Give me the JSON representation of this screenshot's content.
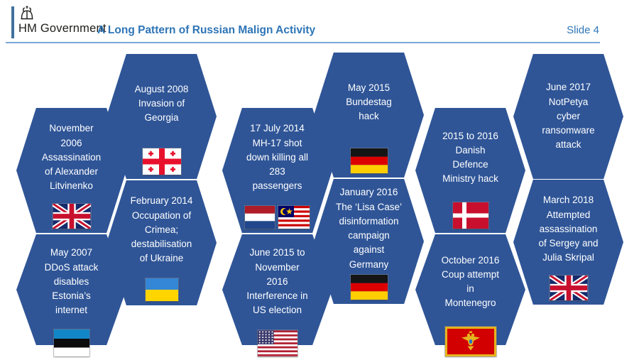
{
  "slide": {
    "org": "HM Government",
    "title": "A Long Pattern of Russian Malign Activity",
    "slide_number": "Slide 4"
  },
  "colors": {
    "hexagon_fill": "#2F5597",
    "title_blue": "#2E75B6",
    "rule_blue": "#7BA7D7",
    "logo_bar_blue": "#41719C"
  },
  "icons": {
    "logo": "crown-icon"
  },
  "hexagons": [
    {
      "name": "litvinenko-assassination",
      "text": "November\n2006\nAssassination\nof Alexander\nLitvinenko",
      "flags": [
        "uk-flag"
      ]
    },
    {
      "name": "estonia-ddos",
      "text": "May 2007\nDDoS attack\ndisables\nEstonia’s\ninternet",
      "flags": [
        "estonia-flag"
      ]
    },
    {
      "name": "georgia-invasion",
      "text": "August 2008\nInvasion of\nGeorgia",
      "flags": [
        "georgia-flag"
      ]
    },
    {
      "name": "crimea-occupation",
      "text": "February 2014\nOccupation of\nCrimea;\ndestabilisation\nof Ukraine",
      "flags": [
        "ukraine-flag"
      ]
    },
    {
      "name": "mh17-shootdown",
      "text": "17 July 2014\nMH-17 shot\ndown killing all\n283\npassengers",
      "flags": [
        "netherlands-flag",
        "malaysia-flag"
      ]
    },
    {
      "name": "us-election-interference",
      "text": "June 2015 to\nNovember\n2016\nInterference in\nUS election",
      "flags": [
        "usa-flag"
      ]
    },
    {
      "name": "bundestag-hack",
      "text": "May 2015\nBundestag\nhack",
      "flags": [
        "germany-flag"
      ]
    },
    {
      "name": "lisa-case-disinformation",
      "text": "January 2016\nThe ‘Lisa Case’\ndisinformation\ncampaign\nagainst\nGermany",
      "flags": [
        "germany-flag"
      ]
    },
    {
      "name": "danish-defence-hack",
      "text": "2015 to 2016\nDanish\nDefence\nMinistry hack",
      "flags": [
        "denmark-flag"
      ]
    },
    {
      "name": "montenegro-coup",
      "text": "October 2016\nCoup attempt\nin\nMontenegro",
      "flags": [
        "montenegro-flag"
      ]
    },
    {
      "name": "notpetya-attack",
      "text": "June 2017\nNotPetya\ncyber\nransomware\nattack",
      "flags": []
    },
    {
      "name": "skripal-poisoning",
      "text": "March 2018\nAttempted\nassassination\nof Sergey and\nJulia Skripal",
      "flags": [
        "uk-flag"
      ]
    }
  ]
}
